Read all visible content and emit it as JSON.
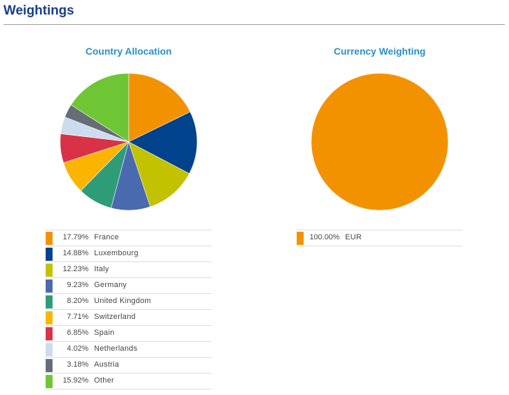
{
  "page": {
    "title": "Weightings"
  },
  "chart_data": [
    {
      "type": "pie",
      "title": "Country Allocation",
      "categories": [
        "France",
        "Luxembourg",
        "Italy",
        "Germany",
        "United Kingdom",
        "Switzerland",
        "Spain",
        "Netherlands",
        "Austria",
        "Other"
      ],
      "values": [
        17.79,
        14.88,
        12.23,
        9.23,
        8.2,
        7.71,
        6.85,
        4.02,
        3.18,
        15.92
      ],
      "labels": [
        "17.79%",
        "14.88%",
        "12.23%",
        "9.23%",
        "8.20%",
        "7.71%",
        "6.85%",
        "4.02%",
        "3.18%",
        "15.92%"
      ],
      "colors": [
        "#f39200",
        "#00428c",
        "#c2c200",
        "#4a6ab0",
        "#2f9c78",
        "#fbb500",
        "#d93247",
        "#ccdcee",
        "#676d75",
        "#6ec634"
      ],
      "legend": "bottom"
    },
    {
      "type": "pie",
      "title": "Currency Weighting",
      "categories": [
        "EUR"
      ],
      "values": [
        100.0
      ],
      "labels": [
        "100.00%"
      ],
      "colors": [
        "#f39200"
      ],
      "legend": "bottom"
    }
  ]
}
